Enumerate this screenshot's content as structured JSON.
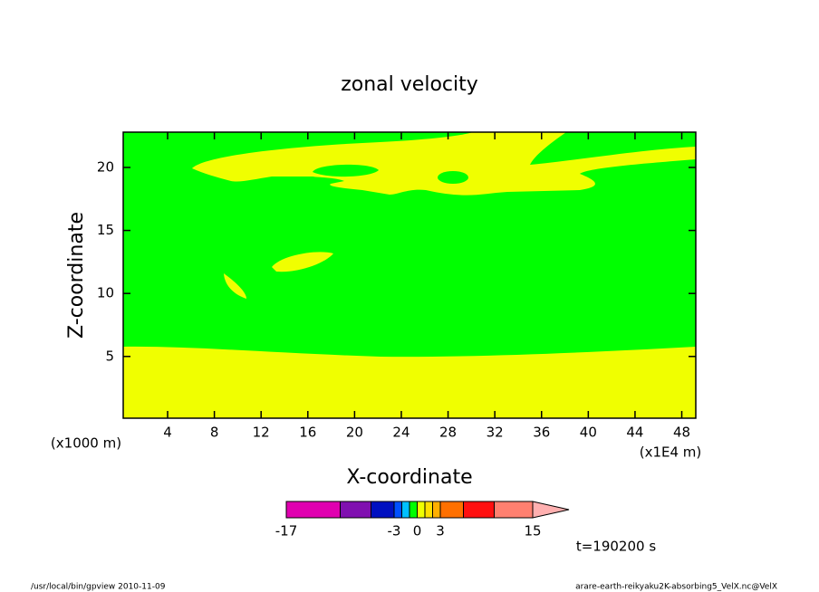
{
  "chart_data": {
    "type": "contour",
    "title": "zonal velocity",
    "x_label": "X-coordinate",
    "x_unit": "(x1E4 m)",
    "y_label": "Z-coordinate",
    "y_unit": "(x1000 m)",
    "xlim": [
      0.2,
      49.2
    ],
    "xticks": [
      4,
      8,
      12,
      16,
      20,
      24,
      28,
      32,
      36,
      40,
      44,
      48
    ],
    "ylim": [
      0.1,
      22.8
    ],
    "yticks": [
      5,
      10,
      15,
      20
    ],
    "colorbar": {
      "levels": [
        -17,
        -10,
        -6,
        -3,
        -2,
        -1,
        0,
        1,
        2,
        3,
        6,
        10,
        15
      ],
      "colors": [
        "#e000b0",
        "#8010b0",
        "#0010c0",
        "#0050ff",
        "#00c0ff",
        "#00ff00",
        "#f0ff00",
        "#ffe000",
        "#ffb000",
        "#ff7000",
        "#ff1010",
        "#ff8070"
      ],
      "extend_color": "#ffb0b0",
      "ticks": [
        -17,
        -3,
        0,
        3,
        15
      ]
    },
    "time_label": "t=190200 s",
    "footer_left": "/usr/local/bin/gpview  2010-11-09",
    "footer_right": "arare-earth-reikyaku2K-absorbing5_VelX.nc@VelX"
  }
}
